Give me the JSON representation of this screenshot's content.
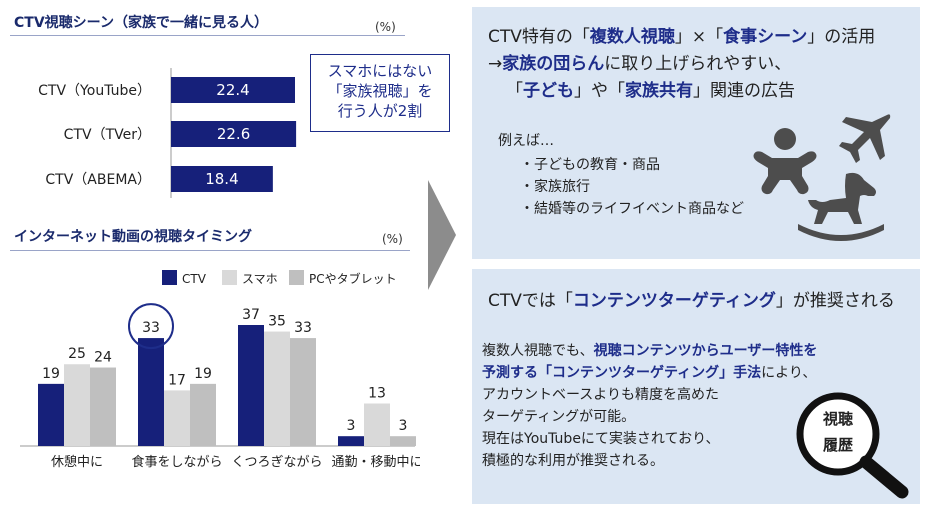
{
  "left": {
    "top_chart": {
      "title": "CTV視聴シーン（家族で一緒に見る人）",
      "unit": "(%)",
      "callout": [
        "スマホにはない",
        "「家族視聴」を",
        "行う人が2割"
      ]
    },
    "bottom_chart": {
      "title": "インターネット動画の視聴タイミング",
      "unit": "(%)"
    }
  },
  "right": {
    "panel1": {
      "line1": {
        "a": "CTV特有の「",
        "b": "複数人視聴",
        "c": "」×「",
        "d": "食事シーン",
        "e": "」の活用"
      },
      "line2": {
        "a": "→",
        "b": "家族の団らん",
        "c": "に取り上げられやすい、"
      },
      "line3": {
        "a": "「",
        "b": "子ども",
        "c": "」や「",
        "d": "家族共有",
        "e": "」関連の広告"
      },
      "examples_lead": "例えば…",
      "examples": [
        "・子どもの教育・商品",
        "・家族旅行",
        "・結婚等のライフイベント商品など"
      ],
      "icons": [
        "baby-icon",
        "airplane-icon",
        "rocking-horse-icon"
      ]
    },
    "panel2": {
      "title": {
        "a": "CTVでは「",
        "b": "コンテンツターゲティング",
        "c": "」が推奨される"
      },
      "body1": {
        "a": "複数人視聴でも、",
        "b": "視聴コンテンツからユーザー特性を"
      },
      "body2": {
        "a": "予測する「コンテンツターゲティング」手法",
        "b": "により、"
      },
      "body3": "アカウントベースよりも精度を高めた",
      "body4": "ターゲティングが可能。",
      "body5": "現在はYouTubeにて実装されており、",
      "body6": "積極的な利用が推奨される。",
      "lens_text": [
        "視聴",
        "履歴"
      ],
      "icon": "magnifier-icon"
    }
  },
  "colors": {
    "navy": "#16207a",
    "light": "#d9d9d9",
    "mid": "#bfbfbf",
    "panel": "#dbe6f3",
    "accent": "#1e2d8a",
    "arrow": "#8c8c8c"
  },
  "chart_data": [
    {
      "type": "bar",
      "orientation": "horizontal",
      "title": "CTV視聴シーン（家族で一緒に見る人）",
      "unit": "(%)",
      "categories": [
        "CTV（YouTube）",
        "CTV（TVer）",
        "CTV（ABEMA）"
      ],
      "values": [
        22.4,
        22.6,
        18.4
      ],
      "value_labels": [
        "22.4",
        "22.6",
        "18.4"
      ]
    },
    {
      "type": "bar",
      "title": "インターネット動画の視聴タイミング",
      "unit": "(%)",
      "categories": [
        "休憩中に",
        "食事をしながら",
        "くつろぎながら",
        "通勤・移動中に"
      ],
      "series": [
        {
          "name": "CTV",
          "values": [
            19,
            33,
            37,
            3
          ],
          "color": "#16207a"
        },
        {
          "name": "スマホ",
          "values": [
            25,
            17,
            35,
            13
          ],
          "color": "#d9d9d9"
        },
        {
          "name": "PCやタブレット",
          "values": [
            24,
            19,
            33,
            3
          ],
          "color": "#bfbfbf"
        }
      ],
      "legend": "top",
      "highlight": {
        "category": "食事をしながら",
        "series": "CTV"
      }
    }
  ]
}
